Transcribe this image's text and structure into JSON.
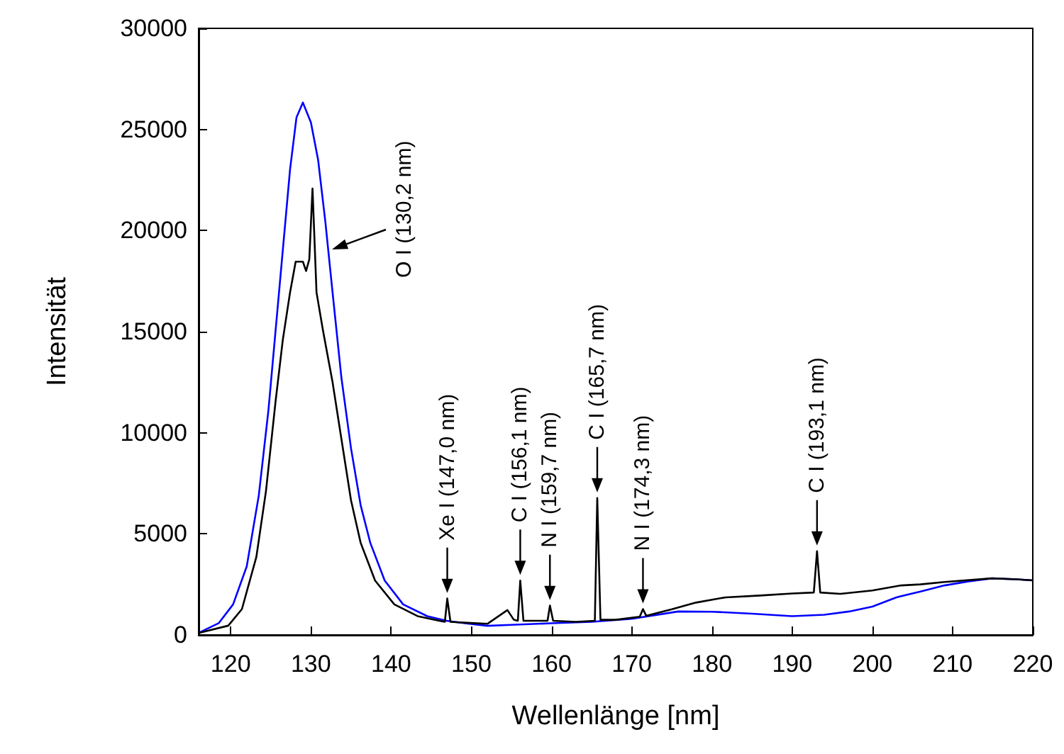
{
  "chart_data": {
    "type": "line",
    "xlabel": "Wellenlänge [nm]",
    "ylabel": "Intensität",
    "xlim": [
      116,
      220
    ],
    "xticks": [
      120,
      130,
      140,
      150,
      160,
      170,
      180,
      190,
      200,
      210,
      220
    ],
    "ylim": [
      0,
      30000
    ],
    "yticks": [
      0,
      5000,
      10000,
      15000,
      20000,
      25000,
      30000
    ],
    "grid": false,
    "marker": "none",
    "line_style": "solid",
    "series": [
      {
        "color": "#0000ff",
        "x": [
          116,
          118.5,
          120.3,
          122,
          123.5,
          124.7,
          125.6,
          126.5,
          127.4,
          128.2,
          129,
          130,
          130.9,
          131.8,
          132.7,
          133.8,
          135,
          136.2,
          137.4,
          139.2,
          141.5,
          144.5,
          146.9,
          149.2,
          152,
          155,
          160,
          165,
          170,
          175.8,
          180,
          185,
          190,
          194,
          197.1,
          200,
          203,
          206,
          209,
          212,
          214.9,
          218,
          220
        ],
        "values": [
          100,
          580,
          1510,
          3390,
          6890,
          11100,
          15070,
          19040,
          23020,
          25590,
          26330,
          25350,
          23490,
          20440,
          16940,
          12730,
          9230,
          6420,
          4560,
          2690,
          1510,
          930,
          700,
          580,
          450,
          500,
          580,
          650,
          800,
          1160,
          1150,
          1050,
          930,
          1000,
          1160,
          1400,
          1860,
          2150,
          2450,
          2650,
          2800,
          2750,
          2700
        ]
      },
      {
        "color": "#000000",
        "x": [
          116,
          119.7,
          121.4,
          123.2,
          124.4,
          125.6,
          126.5,
          127.4,
          128.1,
          129,
          129.4,
          129.8,
          130.2,
          130.7,
          131.5,
          132.7,
          133.8,
          135,
          136.2,
          138,
          140.4,
          143.3,
          146,
          146.7,
          147,
          147.4,
          149.5,
          152,
          154.5,
          155.3,
          155.8,
          156.1,
          156.5,
          158,
          159.5,
          159.8,
          160.2,
          163,
          165.4,
          165.7,
          166.1,
          168,
          171,
          171.4,
          171.8,
          175,
          178,
          181.7,
          186,
          190,
          192.7,
          193.1,
          193.5,
          196,
          200,
          203.6,
          206,
          209,
          214.9,
          218,
          220
        ],
        "values": [
          100,
          460,
          1280,
          3860,
          7120,
          11570,
          14600,
          16940,
          18460,
          18460,
          18000,
          18580,
          22080,
          16940,
          15070,
          12500,
          9700,
          6660,
          4560,
          2690,
          1510,
          930,
          700,
          650,
          1800,
          650,
          600,
          550,
          1230,
          750,
          700,
          2690,
          700,
          700,
          700,
          1450,
          700,
          650,
          700,
          6770,
          750,
          750,
          900,
          1280,
          950,
          1270,
          1600,
          1860,
          1950,
          2050,
          2100,
          4140,
          2100,
          2030,
          2200,
          2450,
          2500,
          2620,
          2800,
          2750,
          2700
        ]
      }
    ],
    "annotations": [
      "O I (130,2 nm)",
      {
        "text": "Xe I (147,0 nm)",
        "x": 147.0,
        "y": 1800
      },
      {
        "text": "C I (156,1 nm)",
        "x": 156.1,
        "y": 2690
      },
      {
        "text": "N I (159,7 nm)",
        "x": 159.8,
        "y": 1450
      },
      {
        "text": "C I (165,7 nm)",
        "x": 165.7,
        "y": 6770
      },
      {
        "text": "N I (174,3 nm)",
        "x": 171.4,
        "y": 1280
      },
      {
        "text": "C I (193,1 nm)",
        "x": 193.1,
        "y": 4140
      }
    ]
  }
}
